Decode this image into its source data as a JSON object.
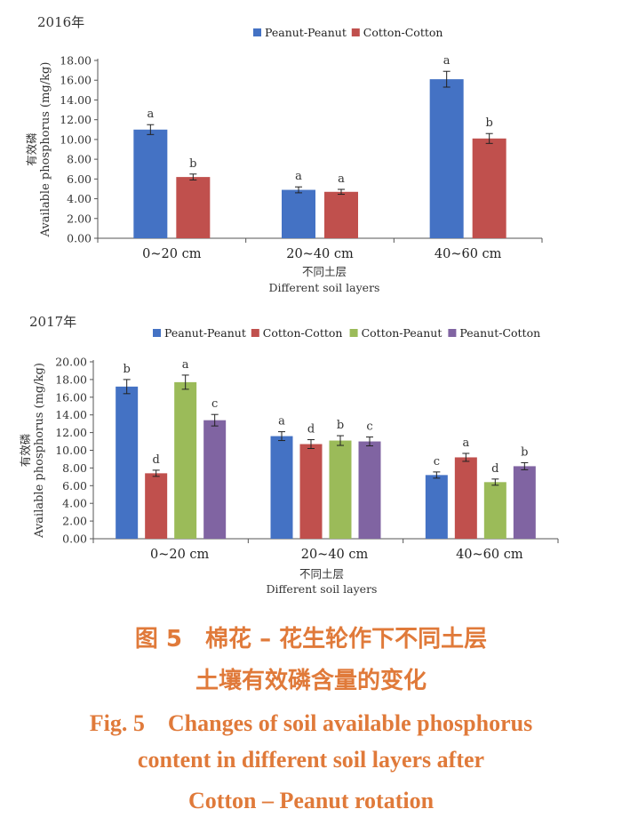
{
  "chart_data": [
    {
      "type": "bar",
      "year_label": "2016年",
      "ylabel_cn": "有效磷",
      "ylabel": "Available phosphorus (mg/kg)",
      "xlabel_cn": "不同土层",
      "xlabel": "Different soil layers",
      "categories": [
        "0~20 cm",
        "20~40 cm",
        "40~60 cm"
      ],
      "ylim": [
        0,
        18
      ],
      "yticks": [
        "0.00",
        "2.00",
        "4.00",
        "6.00",
        "8.00",
        "10.00",
        "12.00",
        "14.00",
        "16.00",
        "18.00"
      ],
      "legend_position": "top",
      "series": [
        {
          "name": "Peanut-Peanut",
          "color": "#4472c4",
          "values": [
            11.0,
            4.9,
            16.1
          ],
          "errors": [
            0.5,
            0.3,
            0.8
          ],
          "letters": [
            "a",
            "a",
            "a"
          ]
        },
        {
          "name": "Cotton-Cotton",
          "color": "#c0504d",
          "values": [
            6.2,
            4.7,
            10.1
          ],
          "errors": [
            0.3,
            0.25,
            0.5
          ],
          "letters": [
            "b",
            "a",
            "b"
          ]
        }
      ]
    },
    {
      "type": "bar",
      "year_label": "2017年",
      "ylabel_cn": "有效磷",
      "ylabel": "Available phosphorus (mg/kg)",
      "xlabel_cn": "不同土层",
      "xlabel": "Different soil layers",
      "categories": [
        "0~20 cm",
        "20~40 cm",
        "40~60 cm"
      ],
      "ylim": [
        0,
        20
      ],
      "yticks": [
        "0.00",
        "2.00",
        "4.00",
        "6.00",
        "8.00",
        "10.00",
        "12.00",
        "14.00",
        "16.00",
        "18.00",
        "20.00"
      ],
      "legend_position": "top",
      "series": [
        {
          "name": "Peanut-Peanut",
          "color": "#4472c4",
          "values": [
            17.2,
            11.6,
            7.2
          ],
          "errors": [
            0.8,
            0.5,
            0.35
          ],
          "letters": [
            "b",
            "a",
            "c"
          ]
        },
        {
          "name": "Cotton-Cotton",
          "color": "#c0504d",
          "values": [
            7.4,
            10.7,
            9.2
          ],
          "errors": [
            0.35,
            0.5,
            0.45
          ],
          "letters": [
            "d",
            "d",
            "a"
          ]
        },
        {
          "name": "Cotton-Peanut",
          "color": "#9bbb59",
          "values": [
            17.7,
            11.1,
            6.4
          ],
          "errors": [
            0.8,
            0.55,
            0.35
          ],
          "letters": [
            "a",
            "b",
            "d"
          ]
        },
        {
          "name": "Peanut-Cotton",
          "color": "#8064a2",
          "values": [
            13.4,
            11.0,
            8.2
          ],
          "errors": [
            0.65,
            0.5,
            0.4
          ],
          "letters": [
            "c",
            "c",
            "b"
          ]
        }
      ]
    }
  ],
  "caption": {
    "cn_line1": "图 5　棉花 – 花生轮作下不同土层",
    "cn_line2": "土壤有效磷含量的变化",
    "en_line1": "Fig. 5　Changes of soil available phosphorus",
    "en_line2": "content in different soil layers after",
    "en_line3": "Cotton – Peanut rotation"
  }
}
